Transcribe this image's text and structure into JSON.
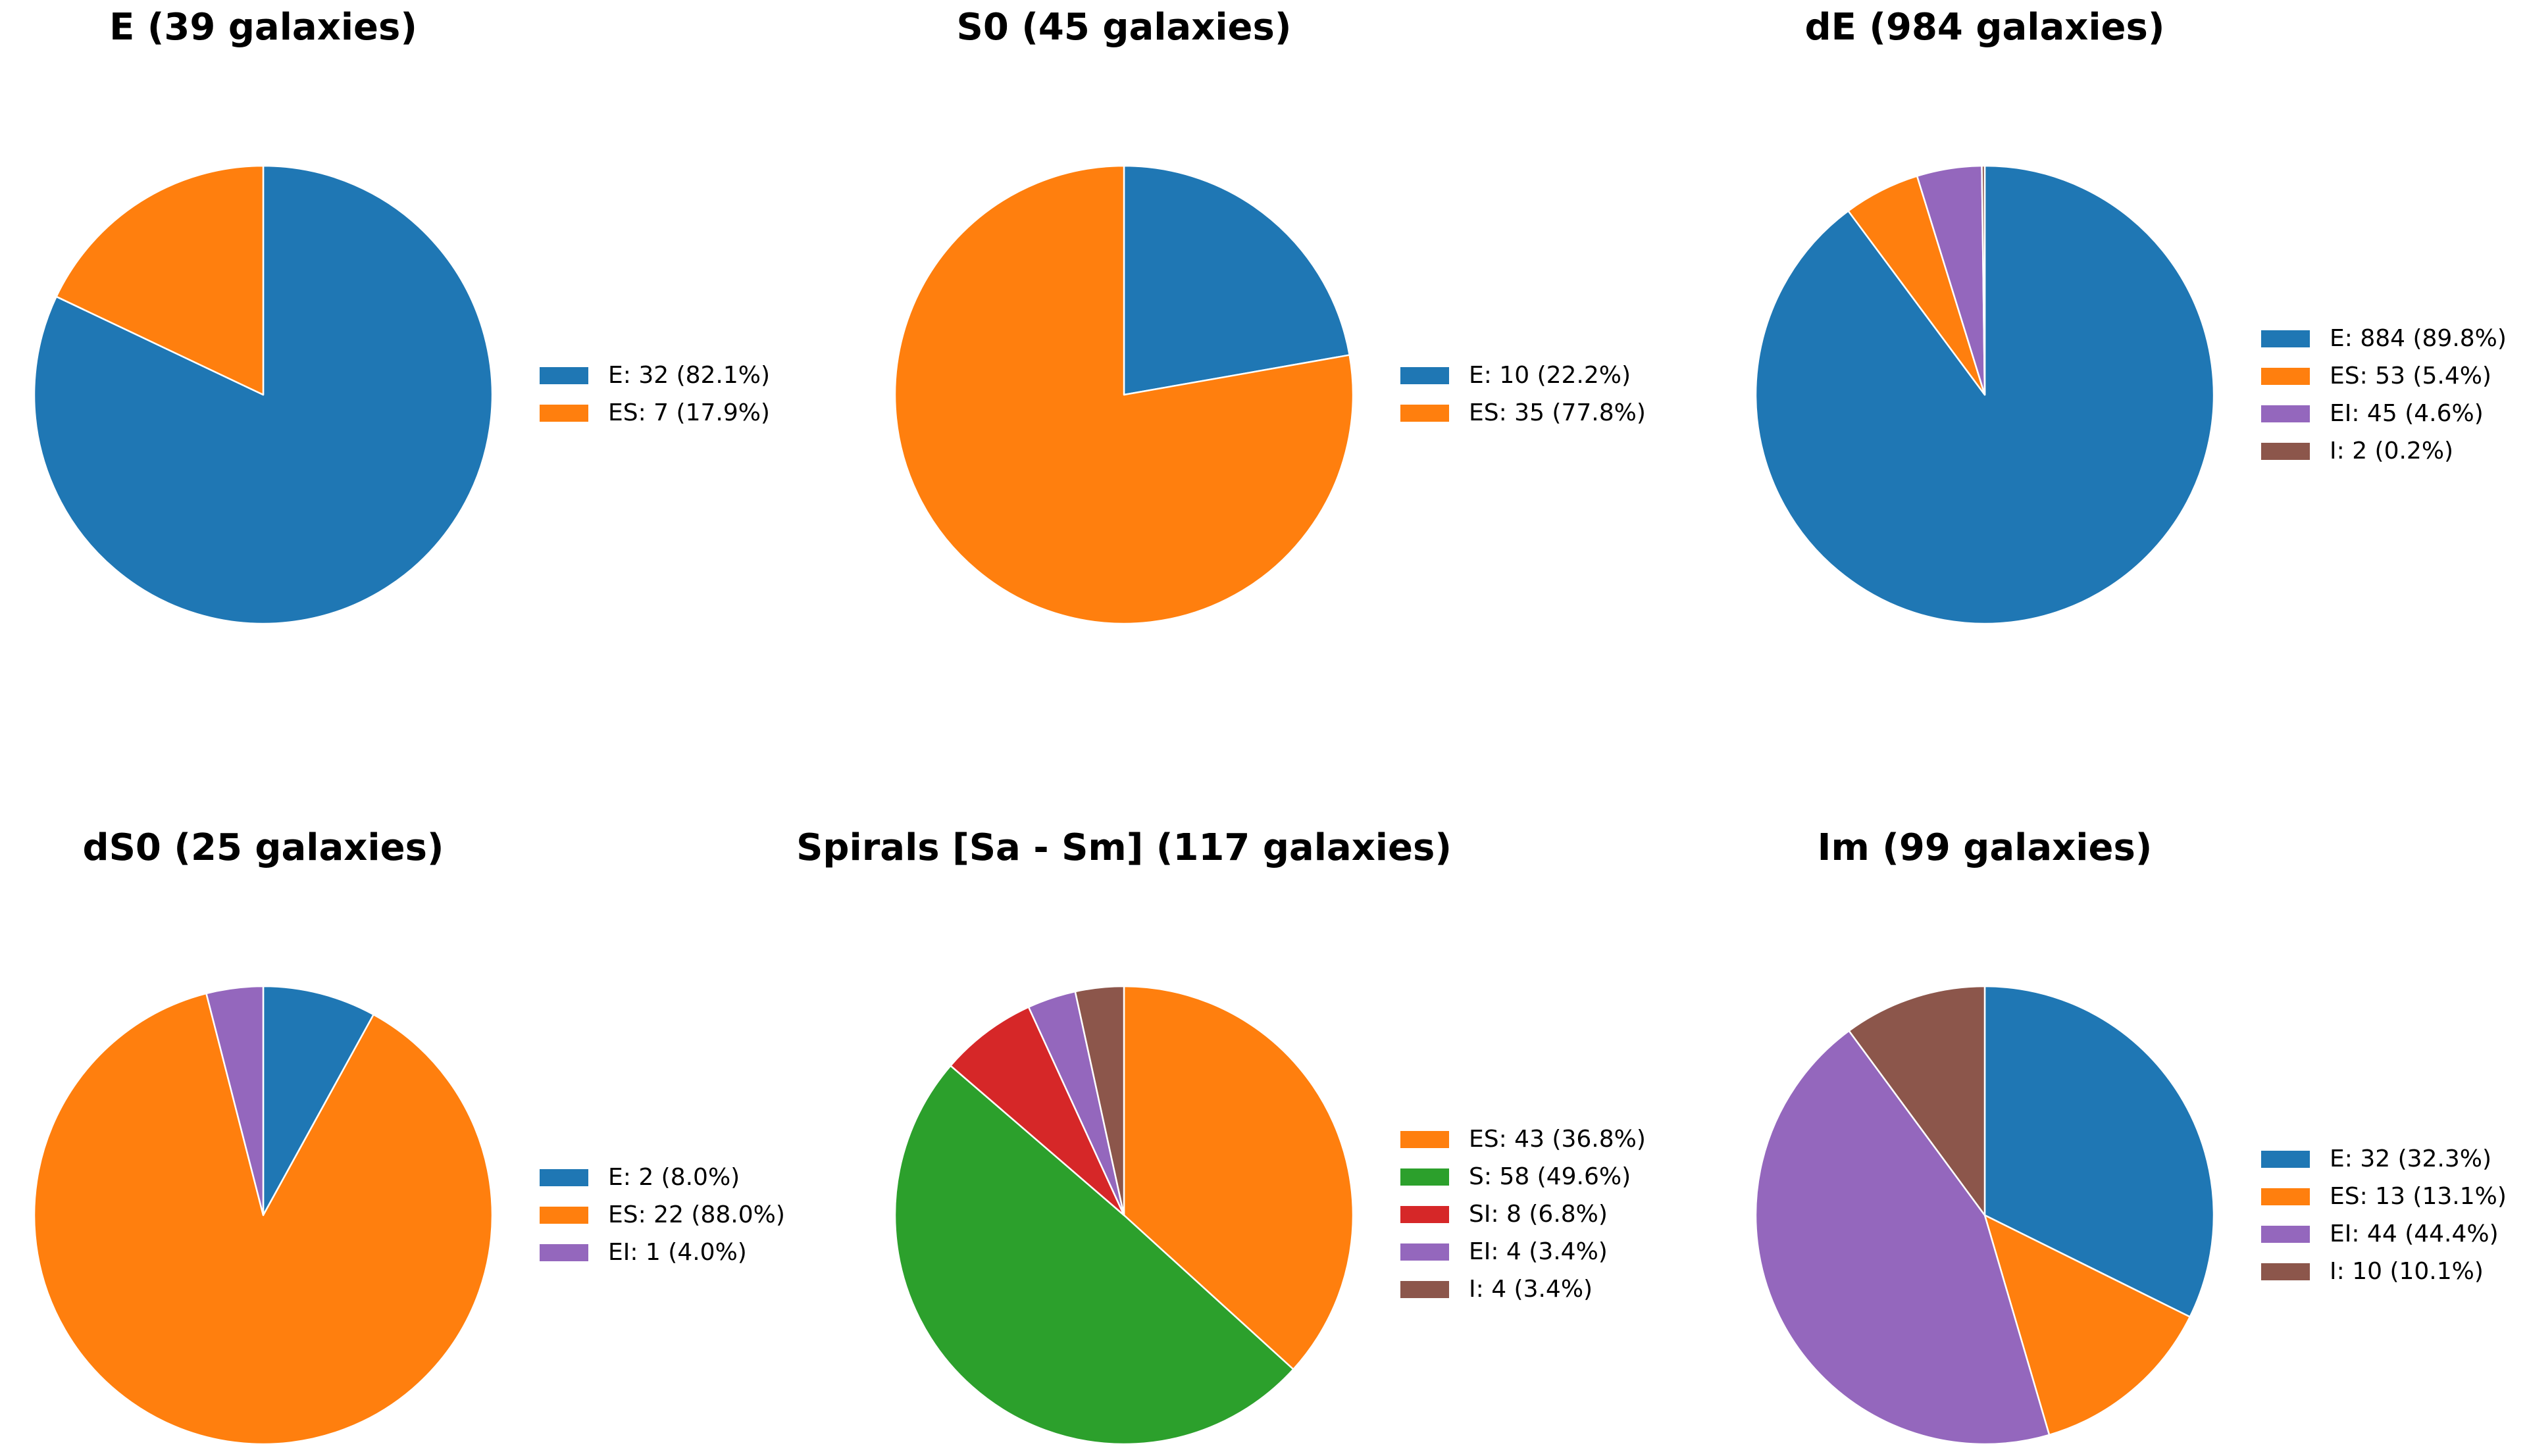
{
  "chart_data": [
    {
      "type": "pie",
      "title": "E (39 galaxies)",
      "slices": [
        {
          "category": "E",
          "value": 32,
          "label": "E: 32 (82.1%)",
          "color": "#1f77b4"
        },
        {
          "category": "ES",
          "value": 7,
          "label": "ES: 7 (17.9%)",
          "color": "#ff7f0e"
        }
      ]
    },
    {
      "type": "pie",
      "title": "S0 (45 galaxies)",
      "slices": [
        {
          "category": "E",
          "value": 10,
          "label": "E: 10 (22.2%)",
          "color": "#1f77b4"
        },
        {
          "category": "ES",
          "value": 35,
          "label": "ES: 35 (77.8%)",
          "color": "#ff7f0e"
        }
      ]
    },
    {
      "type": "pie",
      "title": "dE (984 galaxies)",
      "slices": [
        {
          "category": "E",
          "value": 884,
          "label": "E: 884 (89.8%)",
          "color": "#1f77b4"
        },
        {
          "category": "ES",
          "value": 53,
          "label": "ES: 53 (5.4%)",
          "color": "#ff7f0e"
        },
        {
          "category": "EI",
          "value": 45,
          "label": "EI: 45 (4.6%)",
          "color": "#9467bd"
        },
        {
          "category": "I",
          "value": 2,
          "label": "I: 2 (0.2%)",
          "color": "#8c564b"
        }
      ]
    },
    {
      "type": "pie",
      "title": "dS0 (25 galaxies)",
      "slices": [
        {
          "category": "E",
          "value": 2,
          "label": "E: 2 (8.0%)",
          "color": "#1f77b4"
        },
        {
          "category": "ES",
          "value": 22,
          "label": "ES: 22 (88.0%)",
          "color": "#ff7f0e"
        },
        {
          "category": "EI",
          "value": 1,
          "label": "EI: 1 (4.0%)",
          "color": "#9467bd"
        }
      ]
    },
    {
      "type": "pie",
      "title": "Spirals [Sa - Sm] (117 galaxies)",
      "slices": [
        {
          "category": "ES",
          "value": 43,
          "label": "ES: 43 (36.8%)",
          "color": "#ff7f0e"
        },
        {
          "category": "S",
          "value": 58,
          "label": "S: 58 (49.6%)",
          "color": "#2ca02c"
        },
        {
          "category": "SI",
          "value": 8,
          "label": "SI: 8 (6.8%)",
          "color": "#d62728"
        },
        {
          "category": "EI",
          "value": 4,
          "label": "EI: 4 (3.4%)",
          "color": "#9467bd"
        },
        {
          "category": "I",
          "value": 4,
          "label": "I: 4 (3.4%)",
          "color": "#8c564b"
        }
      ]
    },
    {
      "type": "pie",
      "title": "Im (99 galaxies)",
      "slices": [
        {
          "category": "E",
          "value": 32,
          "label": "E: 32 (32.3%)",
          "color": "#1f77b4"
        },
        {
          "category": "ES",
          "value": 13,
          "label": "ES: 13 (13.1%)",
          "color": "#ff7f0e"
        },
        {
          "category": "EI",
          "value": 44,
          "label": "EI: 44 (44.4%)",
          "color": "#9467bd"
        },
        {
          "category": "I",
          "value": 10,
          "label": "I: 10 (10.1%)",
          "color": "#8c564b"
        }
      ]
    }
  ]
}
